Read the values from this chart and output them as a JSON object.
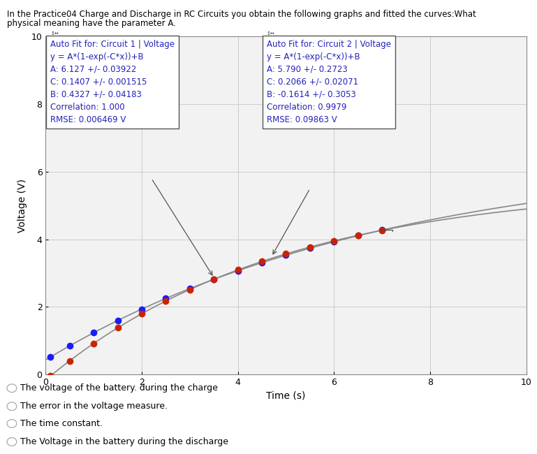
{
  "title_line1": "In the Practice04 Charge and Discharge in RC Circuits you obtain the following graphs and fitted the curves:What",
  "title_line2": "physical meaning have the parameter A.",
  "xlabel": "Time (s)",
  "ylabel": "Voltage (V)",
  "xlim": [
    0,
    10
  ],
  "ylim": [
    0,
    10
  ],
  "xticks": [
    0,
    2,
    4,
    6,
    8,
    10
  ],
  "yticks": [
    0,
    2,
    4,
    6,
    8,
    10
  ],
  "circuit1": {
    "A": 6.127,
    "C": 0.1407,
    "B": 0.4327,
    "dot_color": "#1a1aff",
    "line_color": "#888888"
  },
  "circuit2": {
    "A": 5.79,
    "C": 0.2066,
    "B": -0.1614,
    "dot_color": "#cc2200",
    "line_color": "#888888"
  },
  "data_points_x": [
    0.1,
    0.5,
    1.0,
    1.5,
    2.0,
    2.5,
    3.0,
    3.5,
    4.0,
    4.5,
    5.0,
    5.5,
    6.0,
    6.5,
    7.0
  ],
  "legend1_title": "Auto Fit for: Circuit 1 | Voltage",
  "legend1_lines": [
    "y = A*(1-exp(-C*x))+B",
    "A: 6.127 +/- 0.03922",
    "C: 0.1407 +/- 0.001515",
    "B: 0.4327 +/- 0.04183",
    "Correlation: 1.000",
    "RMSE: 0.006469 V"
  ],
  "legend2_title": "Auto Fit for: Circuit 2 | Voltage",
  "legend2_lines": [
    "y = A*(1-exp(-C*x))+B",
    "A: 5.790 +/- 0.2723",
    "C: 0.2066 +/- 0.02071",
    "B: -0.1614 +/- 0.3053",
    "Correlation: 0.9979",
    "RMSE: 0.09863 V"
  ],
  "legend_text_color": "#2222bb",
  "choices": [
    "The voltage of the battery. during the charge",
    "The error in the voltage measure.",
    "The time constant.",
    "The Voltage in the battery during the discharge"
  ],
  "grid_color": "#cccccc",
  "plot_bg": "#f2f2f2"
}
